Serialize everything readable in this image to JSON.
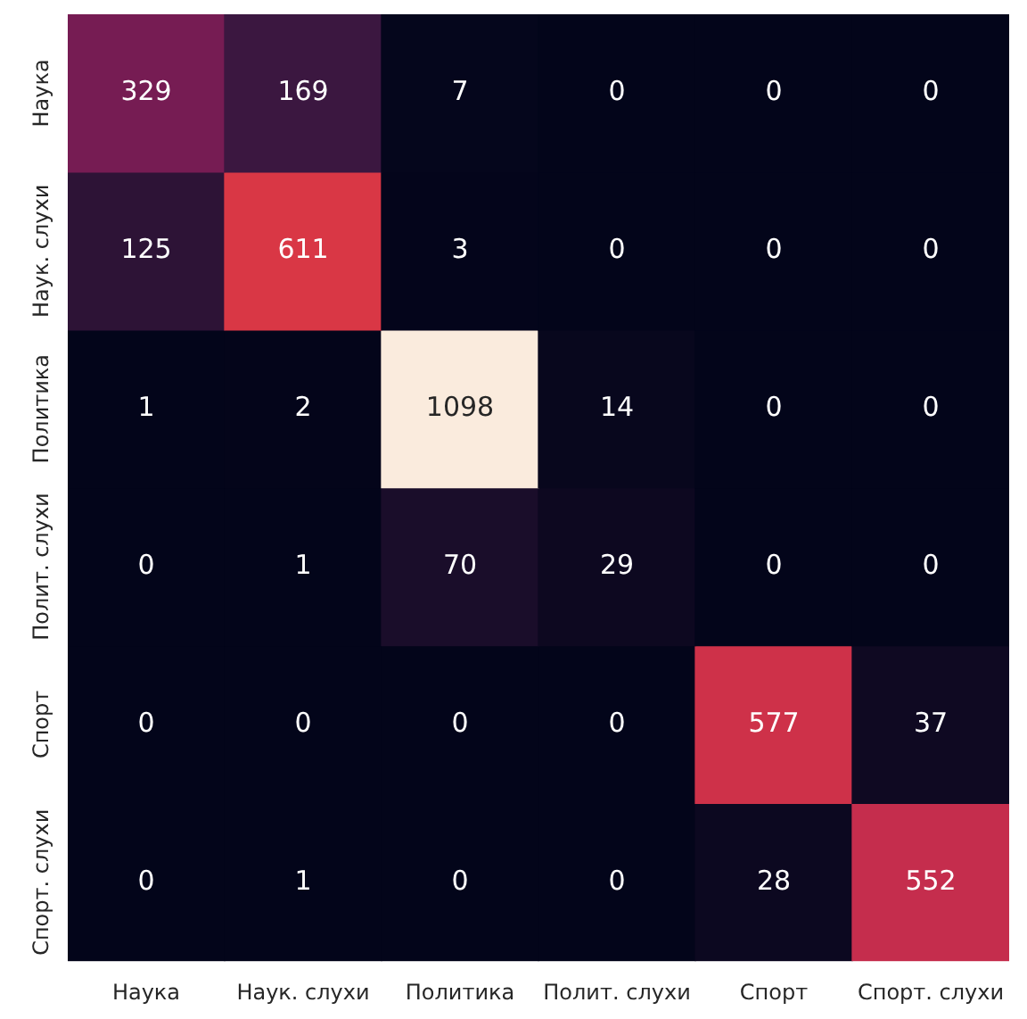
{
  "chart_data": {
    "type": "heatmap",
    "categories": [
      "Наука",
      "Наук. слухи",
      "Политика",
      "Полит. слухи",
      "Спорт",
      "Спорт. слухи"
    ],
    "y_categories": [
      "Наука",
      "Наук. слухи",
      "Политика",
      "Полит. слухи",
      "Спорт",
      "Спорт. слухи"
    ],
    "cells": [
      [
        329,
        169,
        7,
        0,
        0,
        0
      ],
      [
        125,
        611,
        3,
        0,
        0,
        0
      ],
      [
        1,
        2,
        1098,
        14,
        0,
        0
      ],
      [
        0,
        1,
        70,
        29,
        0,
        0
      ],
      [
        0,
        0,
        0,
        0,
        577,
        37
      ],
      [
        0,
        1,
        0,
        0,
        28,
        552
      ]
    ],
    "data_labels": true
  }
}
